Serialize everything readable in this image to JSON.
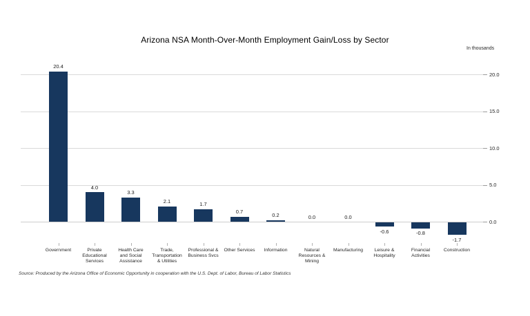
{
  "chart": {
    "title": "Arizona NSA Month-Over-Month Employment Gain/Loss by Sector",
    "axis_note": "In thousands",
    "source": "Source: Produced by the Arizona Office of Economic Opportunity in cooperation with the U.S. Dept. of Labor, Bureau of Labor Statistics",
    "colors": {
      "bar": "#17375e",
      "gridline": "#d9d9d9",
      "zero_line": "#cccccc",
      "text": "#1a1a1a"
    }
  },
  "chart_data": {
    "type": "bar",
    "title": "Arizona NSA Month-Over-Month Employment Gain/Loss by Sector",
    "ylabel": "In thousands",
    "categories": [
      "Government",
      "Private Educational Services",
      "Health Care and Social Assistance",
      "Trade, Transportation & Utilities",
      "Professional & Business Svcs",
      "Other Services",
      "Information",
      "Natural Resources & Mining",
      "Manufacturing",
      "Leisure & Hospitality",
      "Financial Activities",
      "Construction"
    ],
    "category_lines": [
      [
        "Government"
      ],
      [
        "Private",
        "Educational",
        "Services"
      ],
      [
        "Health Care",
        "and Social",
        "Assistance"
      ],
      [
        "Trade,",
        "Transportation",
        "& Utilities"
      ],
      [
        "Professional &",
        "Business Svcs"
      ],
      [
        "Other Services"
      ],
      [
        "Information"
      ],
      [
        "Natural",
        "Resources &",
        "Mining"
      ],
      [
        "Manufacturing"
      ],
      [
        "Leisure &",
        "Hospitality"
      ],
      [
        "Financial",
        "Activities"
      ],
      [
        "Construction"
      ]
    ],
    "values": [
      20.4,
      4.0,
      3.3,
      2.1,
      1.7,
      0.7,
      0.2,
      0.0,
      0.0,
      -0.6,
      -0.8,
      -1.7
    ],
    "value_labels": [
      "20.4",
      "4.0",
      "3.3",
      "2.1",
      "1.7",
      "0.7",
      "0.2",
      "0.0",
      "0.0",
      "-0.6",
      "-0.8",
      "-1.7"
    ],
    "y_tick_values": [
      0,
      5,
      10,
      15,
      20
    ],
    "y_tick_labels": [
      "0.0",
      "5.0",
      "10.0",
      "15.0",
      "20.0"
    ],
    "ylim": [
      -2.5,
      21
    ],
    "grid": true,
    "legend": false,
    "bar_color": "#17375e"
  }
}
